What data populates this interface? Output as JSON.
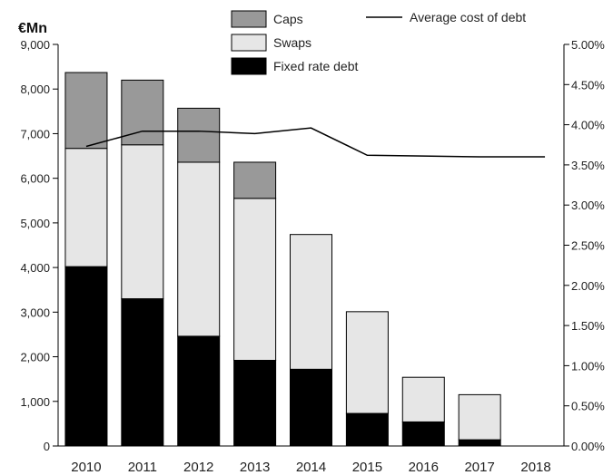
{
  "chart_data": {
    "type": "bar",
    "stacked": true,
    "unit_label": "€Mn",
    "categories": [
      "2010",
      "2011",
      "2012",
      "2013",
      "2014",
      "2015",
      "2016",
      "2017",
      "2018"
    ],
    "series": [
      {
        "name": "Fixed rate debt",
        "color": "#000000",
        "values": [
          4020,
          3300,
          2460,
          1920,
          1720,
          730,
          540,
          140,
          0
        ]
      },
      {
        "name": "Swaps",
        "color": "#e6e6e6",
        "values": [
          2650,
          3450,
          3900,
          3630,
          3020,
          2280,
          1000,
          1010,
          0
        ]
      },
      {
        "name": "Caps",
        "color": "#999999",
        "values": [
          1700,
          1450,
          1210,
          810,
          0,
          0,
          0,
          0,
          0
        ]
      }
    ],
    "line": {
      "name": "Average cost of debt",
      "axis": "right",
      "color": "#000000",
      "values": [
        3.73,
        3.92,
        3.92,
        3.89,
        3.96,
        3.62,
        3.61,
        3.6,
        3.6
      ]
    },
    "ylim_left": [
      0,
      9000
    ],
    "ylim_right": [
      0,
      5.0
    ],
    "yticks_left": [
      "0",
      "1,000",
      "2,000",
      "3,000",
      "4,000",
      "5,000",
      "6,000",
      "7,000",
      "8,000",
      "9,000"
    ],
    "yticks_right": [
      "0.00%",
      "0.50%",
      "1.00%",
      "1.50%",
      "2.00%",
      "2.50%",
      "3.00%",
      "3.50%",
      "4.00%",
      "4.50%",
      "5.00%"
    ],
    "grid": false,
    "legend_position": "top"
  }
}
